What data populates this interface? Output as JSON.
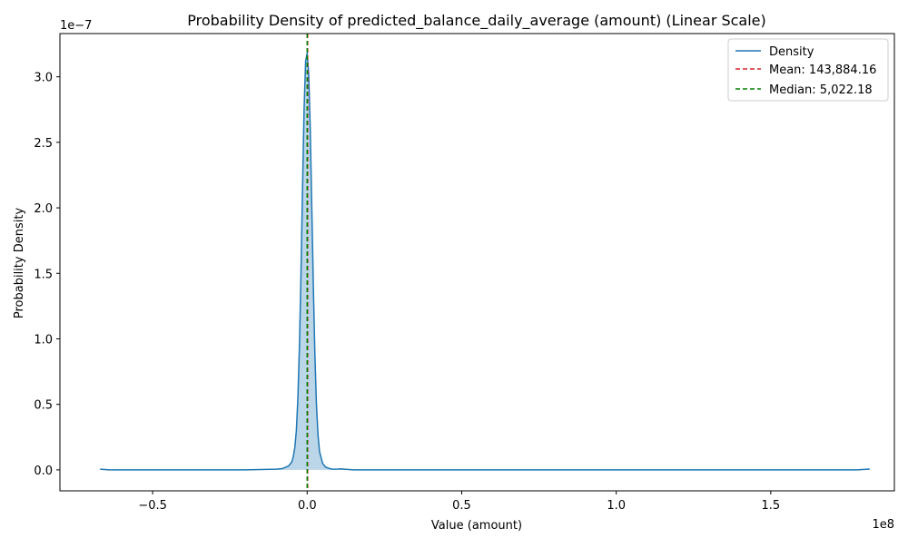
{
  "chart_data": {
    "type": "line",
    "title": "Probability Density of predicted_balance_daily_average (amount) (Linear Scale)",
    "xlabel": "Value (amount)",
    "ylabel": "Probability Density",
    "x_offset_label": "1e8",
    "y_offset_label": "1e−7",
    "xlim": [
      -0.8,
      1.9
    ],
    "ylim": [
      -0.16,
      3.33
    ],
    "x_ticks": [
      {
        "value": -0.5,
        "label": "−0.5"
      },
      {
        "value": 0.0,
        "label": "0.0"
      },
      {
        "value": 0.5,
        "label": "0.5"
      },
      {
        "value": 1.0,
        "label": "1.0"
      },
      {
        "value": 1.5,
        "label": "1.5"
      }
    ],
    "y_ticks": [
      {
        "value": 0.0,
        "label": "0.0"
      },
      {
        "value": 0.5,
        "label": "0.5"
      },
      {
        "value": 1.0,
        "label": "1.0"
      },
      {
        "value": 1.5,
        "label": "1.5"
      },
      {
        "value": 2.0,
        "label": "2.0"
      },
      {
        "value": 2.5,
        "label": "2.5"
      },
      {
        "value": 3.0,
        "label": "3.0"
      }
    ],
    "grid": false,
    "legend_position": "top-right",
    "series": [
      {
        "name": "Density",
        "color": "#1f77b4",
        "style": "solid",
        "fill": true,
        "x": [
          -0.67,
          -0.64,
          -0.6,
          -0.5,
          -0.4,
          -0.3,
          -0.2,
          -0.1,
          -0.08,
          -0.06,
          -0.05,
          -0.045,
          -0.04,
          -0.035,
          -0.03,
          -0.025,
          -0.02,
          -0.015,
          -0.01,
          -0.005,
          0.0,
          0.005,
          0.01,
          0.015,
          0.02,
          0.025,
          0.03,
          0.035,
          0.04,
          0.05,
          0.06,
          0.08,
          0.1,
          0.11,
          0.12,
          0.15,
          0.2,
          0.5,
          1.0,
          1.5,
          1.78,
          1.82
        ],
        "y": [
          0.005,
          0.0,
          0.0,
          0.0,
          0.0,
          0.0,
          0.0,
          0.005,
          0.01,
          0.03,
          0.06,
          0.1,
          0.17,
          0.3,
          0.55,
          0.95,
          1.5,
          2.15,
          2.75,
          3.12,
          3.18,
          3.02,
          2.6,
          2.0,
          1.4,
          0.88,
          0.5,
          0.27,
          0.14,
          0.05,
          0.02,
          0.005,
          0.006,
          0.008,
          0.005,
          0.0,
          0.0,
          0.0,
          0.0,
          0.0,
          0.0,
          0.006
        ]
      },
      {
        "name": "Mean: 143,884.16",
        "color": "#d62728",
        "style": "dashed",
        "vline": 0.00143884
      },
      {
        "name": "Median: 5,022.18",
        "color": "#008000",
        "style": "dashed",
        "vline": 5.02e-05
      }
    ]
  }
}
